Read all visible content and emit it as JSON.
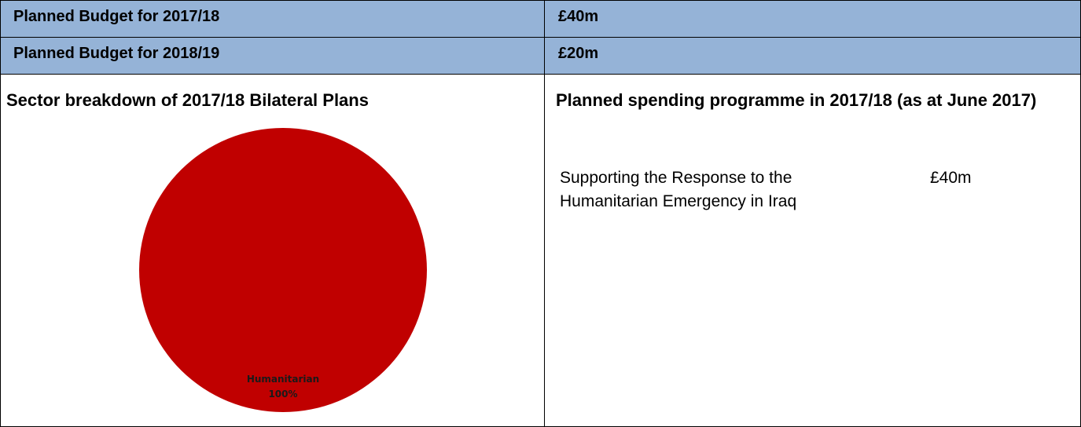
{
  "budget_rows": [
    {
      "label": "Planned Budget for 2017/18",
      "value": "£40m"
    },
    {
      "label": "Planned Budget for 2018/19",
      "value": "£20m"
    }
  ],
  "sector_breakdown": {
    "title": "Sector breakdown of 2017/18 Bilateral Plans"
  },
  "spending_programme": {
    "title": "Planned spending programme in 2017/18 (as at June 2017)",
    "items": [
      {
        "name": "Supporting the Response to the Humanitarian Emergency in Iraq",
        "amount": "£40m"
      }
    ]
  },
  "chart_data": {
    "type": "pie",
    "categories": [
      "Humanitarian"
    ],
    "values": [
      100
    ],
    "data_labels": [
      "Humanitarian",
      "100%"
    ],
    "colors": [
      "#c00000"
    ],
    "title": "",
    "legend": "none"
  }
}
